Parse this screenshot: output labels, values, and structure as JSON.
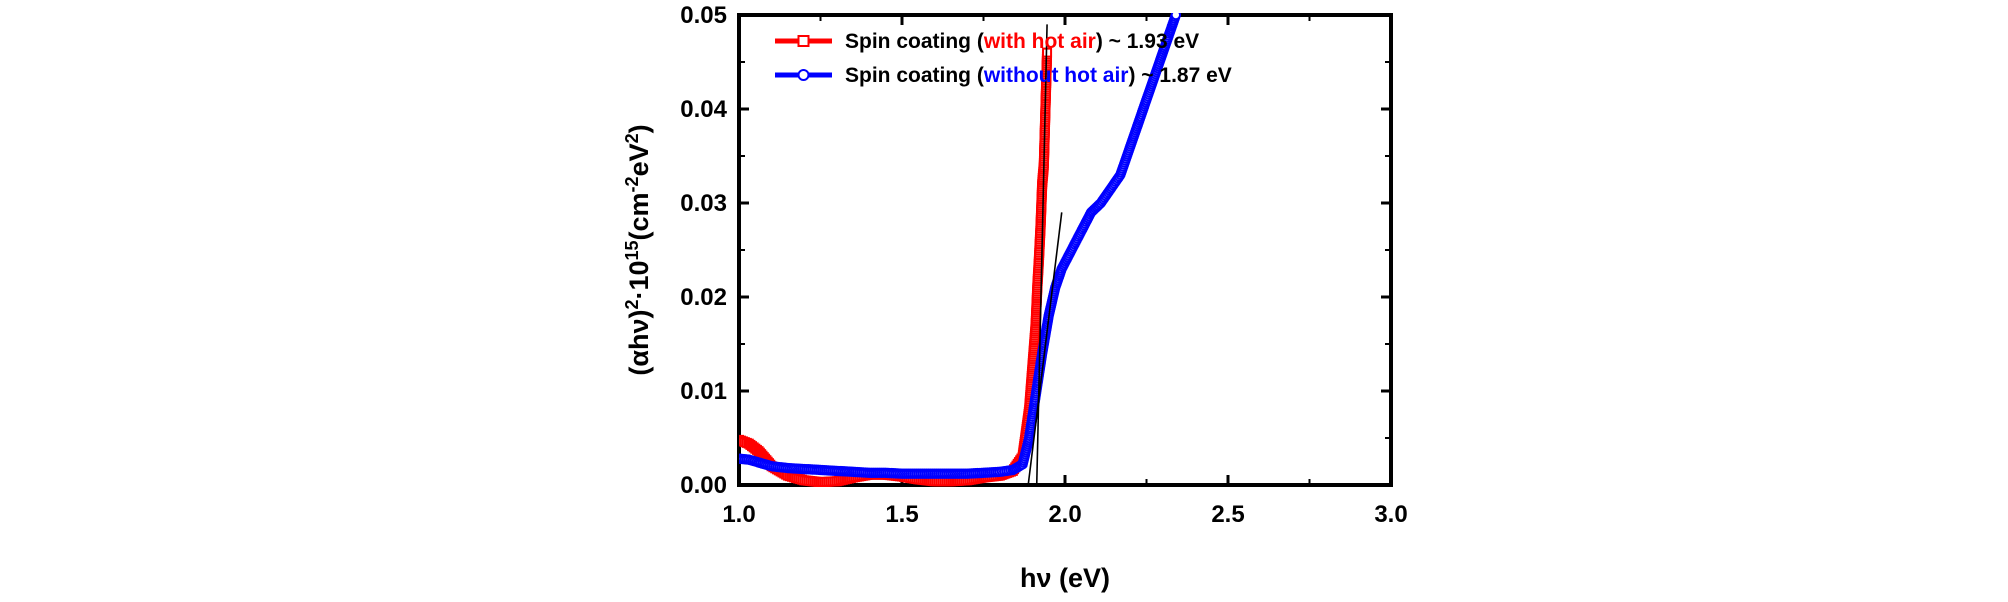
{
  "chart_data": {
    "type": "scatter",
    "title": "",
    "xlabel": "hν (eV)",
    "ylabel_parts": {
      "open": "(αhν)",
      "sup1": "2",
      "mid": "·10",
      "sup2": "15",
      "unit_open": "(cm",
      "sup3": "-2",
      "unit_mid": "eV",
      "sup4": "2",
      "close": ")"
    },
    "xlim": [
      1.0,
      3.0
    ],
    "ylim": [
      0.0,
      0.05
    ],
    "xticks": [
      "1.0",
      "1.5",
      "2.0",
      "2.5",
      "3.0"
    ],
    "yticks": [
      "0.00",
      "0.01",
      "0.02",
      "0.03",
      "0.04",
      "0.05"
    ],
    "legend_position": "top-left",
    "grid": false,
    "series": [
      {
        "name": "Spin coating (with hot air) ~ 1.93 eV",
        "legend_prefix": "Spin coating (",
        "legend_colored": "with hot air",
        "legend_suffix": ") ~ 1.93 eV",
        "color": "#ff0000",
        "marker": "open-square",
        "x": [
          1.0,
          1.03,
          1.06,
          1.1,
          1.15,
          1.2,
          1.25,
          1.3,
          1.35,
          1.4,
          1.45,
          1.5,
          1.55,
          1.6,
          1.65,
          1.7,
          1.75,
          1.8,
          1.84,
          1.87,
          1.89,
          1.9,
          1.91,
          1.915,
          1.92,
          1.925,
          1.93,
          1.935,
          1.94,
          1.945
        ],
        "y": [
          0.0048,
          0.0044,
          0.0036,
          0.002,
          0.001,
          0.0005,
          0.0003,
          0.0004,
          0.0008,
          0.0011,
          0.0011,
          0.0009,
          0.0006,
          0.0004,
          0.0004,
          0.0005,
          0.0008,
          0.001,
          0.0015,
          0.003,
          0.008,
          0.0125,
          0.017,
          0.021,
          0.024,
          0.0275,
          0.032,
          0.034,
          0.04,
          0.046
        ]
      },
      {
        "name": "Spin coating (without hot air) ~ 1.87 eV",
        "legend_prefix": "Spin coating (",
        "legend_colored": "without hot air",
        "legend_suffix": ") ~ 1.87 eV",
        "color": "#0000ff",
        "marker": "open-circle",
        "x": [
          1.0,
          1.03,
          1.06,
          1.1,
          1.15,
          1.2,
          1.25,
          1.3,
          1.35,
          1.4,
          1.45,
          1.5,
          1.55,
          1.6,
          1.65,
          1.7,
          1.75,
          1.8,
          1.84,
          1.87,
          1.89,
          1.91,
          1.93,
          1.95,
          1.97,
          1.99,
          2.02,
          2.05,
          2.08,
          2.11,
          2.14,
          2.17,
          2.2,
          2.23,
          2.26,
          2.29,
          2.32,
          2.34
        ],
        "y": [
          0.0028,
          0.0027,
          0.0024,
          0.002,
          0.0018,
          0.0017,
          0.0016,
          0.0015,
          0.0014,
          0.0013,
          0.0013,
          0.0012,
          0.0012,
          0.0012,
          0.0012,
          0.0012,
          0.0013,
          0.0014,
          0.0016,
          0.0022,
          0.005,
          0.0095,
          0.014,
          0.018,
          0.021,
          0.023,
          0.025,
          0.027,
          0.029,
          0.03,
          0.0315,
          0.033,
          0.036,
          0.039,
          0.042,
          0.045,
          0.048,
          0.05
        ]
      }
    ],
    "fit_lines": [
      {
        "name": "tangent-with-hot-air",
        "x": [
          1.912,
          1.945
        ],
        "y": [
          -0.002,
          0.049
        ]
      },
      {
        "name": "tangent-without-hot-air",
        "x": [
          1.88,
          1.99
        ],
        "y": [
          -0.002,
          0.029
        ]
      }
    ]
  }
}
